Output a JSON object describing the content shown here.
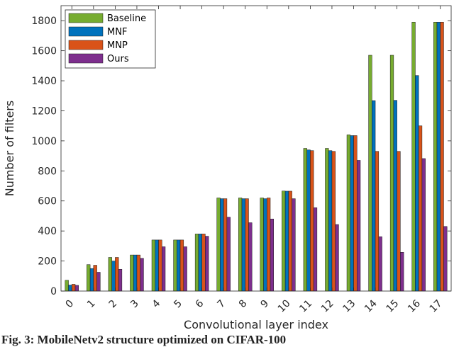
{
  "chart_data": {
    "type": "bar",
    "title": "",
    "xlabel": "Convolutional layer index",
    "ylabel": "Number of filters",
    "ylim": [
      0,
      1900
    ],
    "yticks": [
      0,
      200,
      400,
      600,
      800,
      1000,
      1200,
      1400,
      1600,
      1800
    ],
    "categories": [
      "0",
      "1",
      "2",
      "3",
      "4",
      "5",
      "6",
      "7",
      "8",
      "9",
      "10",
      "11",
      "12",
      "13",
      "14",
      "15",
      "16",
      "17"
    ],
    "legend_position": "top-left",
    "grid": false,
    "series": [
      {
        "name": "Baseline",
        "color": "#77AC30",
        "values": [
          72,
          176,
          224,
          240,
          340,
          340,
          380,
          620,
          620,
          620,
          666,
          950,
          950,
          1040,
          1570,
          1570,
          1790,
          1790
        ]
      },
      {
        "name": "MNF",
        "color": "#0072BD",
        "values": [
          40,
          150,
          200,
          240,
          340,
          340,
          380,
          615,
          615,
          615,
          665,
          940,
          935,
          1035,
          1268,
          1270,
          1435,
          1790
        ]
      },
      {
        "name": "MNP",
        "color": "#D95319",
        "values": [
          45,
          172,
          224,
          240,
          340,
          340,
          380,
          615,
          615,
          620,
          665,
          935,
          930,
          1035,
          930,
          930,
          1100,
          1790
        ]
      },
      {
        "name": "Ours",
        "color": "#7E2F8E",
        "values": [
          38,
          125,
          145,
          218,
          295,
          295,
          365,
          492,
          455,
          480,
          615,
          555,
          443,
          870,
          362,
          258,
          882,
          430
        ]
      }
    ]
  },
  "caption": "Fig. 3: MobileNetv2 structure optimized on CIFAR-100"
}
